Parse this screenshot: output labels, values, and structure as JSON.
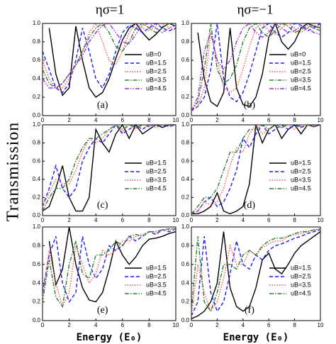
{
  "column_titles": [
    "ησ=1",
    "ησ=−1"
  ],
  "y_label": "Transmission",
  "chart_data": [
    {
      "type": "line",
      "annotation": "(a)",
      "legend": "lower right",
      "xlim": [
        0,
        10
      ],
      "ylim": [
        0,
        1
      ],
      "xticks": [
        0,
        2,
        4,
        6,
        8,
        10
      ],
      "yticks": [
        {
          "value": 0,
          "label": "0.0"
        },
        0.2,
        0.4,
        0.6,
        0.8,
        {
          "value": 1,
          "label": "1.0"
        }
      ],
      "x": [
        0,
        0.5,
        1,
        1.5,
        2,
        2.5,
        3,
        3.5,
        4,
        4.5,
        5,
        5.5,
        6,
        6.5,
        7,
        7.5,
        8,
        8.5,
        9,
        9.5,
        10
      ],
      "series": [
        {
          "name": "uB=0",
          "color": "#000000",
          "style": "solid",
          "values": [
            null,
            0.95,
            0.45,
            0.22,
            0.3,
            0.97,
            0.6,
            0.3,
            0.2,
            0.25,
            0.4,
            0.62,
            0.82,
            0.95,
            1.0,
            0.9,
            0.82,
            0.88,
            0.96,
            1.0,
            0.97
          ]
        },
        {
          "name": "uB=1.5",
          "color": "#1a1aff",
          "style": "dashed",
          "values": [
            0.7,
            0.5,
            0.3,
            0.25,
            0.35,
            0.6,
            0.95,
            0.7,
            0.4,
            0.3,
            0.45,
            0.7,
            0.9,
            0.98,
            0.95,
            0.9,
            0.95,
            1.0,
            0.95,
            0.92,
            0.95
          ]
        },
        {
          "name": "uB=2.5",
          "color": "#ff4d4d",
          "style": "dotted",
          "values": [
            0.6,
            0.4,
            0.3,
            0.3,
            0.4,
            0.55,
            0.7,
            0.9,
            1.0,
            0.8,
            0.6,
            0.55,
            0.7,
            0.9,
            1.0,
            0.95,
            0.92,
            0.98,
            1.0,
            0.95,
            0.93
          ]
        },
        {
          "name": "uB=3.5",
          "color": "#2e7d32",
          "style": "dashdot",
          "values": [
            0.5,
            0.35,
            0.3,
            0.35,
            0.45,
            0.55,
            0.7,
            0.85,
            0.95,
            1.0,
            0.9,
            0.75,
            0.7,
            0.8,
            0.95,
            1.0,
            0.95,
            0.9,
            0.95,
            1.0,
            0.97
          ]
        },
        {
          "name": "uB=4.5",
          "color": "#9b30d0",
          "style": "dashdotdot",
          "values": [
            0.4,
            0.3,
            0.3,
            0.35,
            0.45,
            0.55,
            0.65,
            0.8,
            0.9,
            0.98,
            1.0,
            0.9,
            0.8,
            0.78,
            0.88,
            0.98,
            1.0,
            0.95,
            0.9,
            0.95,
            0.98
          ]
        }
      ]
    },
    {
      "type": "line",
      "annotation": "(b)",
      "legend": "lower right",
      "xlim": [
        0,
        10
      ],
      "ylim": [
        0,
        1
      ],
      "xticks": [
        0,
        2,
        4,
        6,
        8,
        10
      ],
      "yticks": [
        {
          "value": 0,
          "label": "0.0"
        },
        0.2,
        0.4,
        0.6,
        0.8,
        {
          "value": 1,
          "label": "1.0"
        }
      ],
      "x": [
        0,
        0.5,
        1,
        1.5,
        2,
        2.5,
        3,
        3.5,
        4,
        4.5,
        5,
        5.5,
        6,
        6.5,
        7,
        7.5,
        8,
        8.5,
        9,
        9.5,
        10
      ],
      "series": [
        {
          "name": "uB=0",
          "color": "#000000",
          "style": "solid",
          "values": [
            null,
            0.9,
            0.4,
            0.15,
            0.1,
            0.25,
            0.95,
            0.3,
            0.12,
            0.1,
            0.2,
            0.45,
            0.85,
            1.0,
            0.8,
            0.72,
            0.8,
            0.95,
            1.0,
            0.97,
            0.95
          ]
        },
        {
          "name": "uB=1.5",
          "color": "#1a1aff",
          "style": "dashed",
          "values": [
            0.05,
            0.1,
            0.2,
            0.5,
            1.0,
            0.4,
            0.2,
            0.15,
            0.25,
            0.45,
            0.7,
            0.95,
            1.0,
            0.9,
            0.85,
            0.9,
            1.0,
            0.98,
            0.92,
            0.95,
            1.0
          ]
        },
        {
          "name": "uB=2.5",
          "color": "#ff4d4d",
          "style": "dotted",
          "values": [
            0.05,
            0.1,
            0.3,
            0.9,
            0.6,
            0.3,
            0.25,
            0.3,
            0.5,
            0.75,
            0.95,
            1.0,
            0.92,
            0.88,
            0.95,
            1.0,
            0.95,
            0.9,
            0.95,
            0.98,
            0.95
          ]
        },
        {
          "name": "uB=3.5",
          "color": "#2e7d32",
          "style": "dashdot",
          "values": [
            0.05,
            0.15,
            0.5,
            1.0,
            0.5,
            0.35,
            0.4,
            0.55,
            0.8,
            0.95,
            1.0,
            0.9,
            0.85,
            0.92,
            1.0,
            0.97,
            0.9,
            0.93,
            0.98,
            0.95,
            0.92
          ]
        },
        {
          "name": "uB=4.5",
          "color": "#9b30d0",
          "style": "dashdotdot",
          "values": [
            0.05,
            0.2,
            0.7,
            0.9,
            0.6,
            0.5,
            0.6,
            0.8,
            0.95,
            1.0,
            0.9,
            0.85,
            0.9,
            1.0,
            0.95,
            0.9,
            0.92,
            0.97,
            0.95,
            0.9,
            0.88
          ]
        }
      ]
    },
    {
      "type": "line",
      "annotation": "(c)",
      "legend": "lower right",
      "xlim": [
        0,
        10
      ],
      "ylim": [
        0,
        1
      ],
      "xticks": [
        0,
        2,
        4,
        6,
        8,
        10
      ],
      "yticks": [
        {
          "value": 0,
          "label": "0.0"
        },
        0.2,
        0.4,
        0.6,
        0.8,
        {
          "value": 1,
          "label": "1.0"
        }
      ],
      "x": [
        0,
        0.5,
        1,
        1.5,
        2,
        2.5,
        3,
        3.5,
        4,
        4.5,
        5,
        5.5,
        6,
        6.5,
        7,
        7.5,
        8,
        8.5,
        9,
        9.5,
        10
      ],
      "series": [
        {
          "name": "uB=1.5",
          "color": "#000000",
          "style": "solid",
          "values": [
            0.05,
            0.1,
            0.3,
            0.55,
            0.2,
            0.05,
            0.05,
            0.2,
            0.95,
            0.8,
            0.7,
            0.9,
            1.0,
            0.85,
            1.0,
            0.9,
            0.95,
            1.0,
            0.97,
            1.0,
            1.0
          ]
        },
        {
          "name": "uB=2.5",
          "color": "#1a1aff",
          "style": "dashed",
          "values": [
            0.1,
            0.3,
            0.55,
            0.3,
            0.2,
            0.3,
            0.6,
            0.75,
            0.85,
            0.8,
            0.9,
            1.0,
            0.9,
            0.95,
            1.0,
            0.95,
            1.0,
            1.0,
            0.98,
            1.0,
            1.0
          ]
        },
        {
          "name": "uB=3.5",
          "color": "#ff4d4d",
          "style": "dotted",
          "values": [
            0.1,
            0.25,
            0.4,
            0.35,
            0.35,
            0.5,
            0.7,
            0.85,
            0.8,
            0.85,
            0.95,
            1.0,
            0.92,
            1.0,
            0.95,
            1.0,
            1.0,
            0.97,
            1.0,
            1.0,
            1.0
          ]
        },
        {
          "name": "uB=4.5",
          "color": "#2e7d32",
          "style": "dashdot",
          "values": [
            0.05,
            0.2,
            0.3,
            0.3,
            0.4,
            0.6,
            0.75,
            0.85,
            0.85,
            0.9,
            0.95,
            1.0,
            0.95,
            1.0,
            0.97,
            1.0,
            0.98,
            1.0,
            1.0,
            0.98,
            1.0
          ]
        }
      ]
    },
    {
      "type": "line",
      "annotation": "(d)",
      "legend": "lower right",
      "xlim": [
        0,
        10
      ],
      "ylim": [
        0,
        1
      ],
      "xticks": [
        0,
        2,
        4,
        6,
        8,
        10
      ],
      "yticks": [
        {
          "value": 0,
          "label": "0.0"
        },
        0.2,
        0.4,
        0.6,
        0.8,
        {
          "value": 1,
          "label": "1.0"
        }
      ],
      "x": [
        0,
        0.5,
        1,
        1.5,
        2,
        2.5,
        3,
        3.5,
        4,
        4.5,
        5,
        5.5,
        6,
        6.5,
        7,
        7.5,
        8,
        8.5,
        9,
        9.5,
        10
      ],
      "series": [
        {
          "name": "uB=1.5",
          "color": "#000000",
          "style": "solid",
          "values": [
            0.02,
            0.02,
            0.05,
            0.1,
            0.25,
            0.05,
            0.02,
            0.05,
            0.1,
            0.35,
            1.0,
            0.8,
            0.95,
            1.0,
            0.85,
            0.95,
            1.0,
            0.9,
            1.0,
            0.98,
            1.0
          ]
        },
        {
          "name": "uB=2.5",
          "color": "#1a1aff",
          "style": "dashed",
          "values": [
            0.02,
            0.05,
            0.15,
            0.2,
            0.1,
            0.15,
            0.3,
            0.5,
            0.85,
            0.75,
            0.9,
            1.0,
            0.9,
            0.95,
            1.0,
            0.95,
            1.0,
            0.97,
            1.0,
            1.0,
            1.0
          ]
        },
        {
          "name": "uB=3.5",
          "color": "#ff4d4d",
          "style": "dotted",
          "values": [
            0.02,
            0.05,
            0.15,
            0.12,
            0.15,
            0.3,
            0.55,
            0.75,
            0.7,
            0.9,
            1.0,
            0.9,
            0.95,
            1.0,
            0.97,
            1.0,
            0.95,
            1.0,
            1.0,
            0.98,
            1.0
          ]
        },
        {
          "name": "uB=4.5",
          "color": "#2e7d32",
          "style": "dashdot",
          "values": [
            0.02,
            0.1,
            0.2,
            0.2,
            0.3,
            0.5,
            0.7,
            0.7,
            0.85,
            0.95,
            0.95,
            1.0,
            0.95,
            1.0,
            0.97,
            1.0,
            1.0,
            0.98,
            1.0,
            1.0,
            1.0
          ]
        }
      ]
    },
    {
      "type": "line",
      "annotation": "(e)",
      "legend": "lower right",
      "xlabel": "Energy (E₀)",
      "xlim": [
        0,
        10
      ],
      "ylim": [
        0,
        1
      ],
      "xticks": [
        0,
        2,
        4,
        6,
        8,
        10
      ],
      "yticks": [
        {
          "value": 0,
          "label": "0.0"
        },
        0.2,
        0.4,
        0.6,
        0.8,
        {
          "value": 1,
          "label": "1.0"
        }
      ],
      "x": [
        0,
        0.5,
        1,
        1.5,
        2,
        2.5,
        3,
        3.5,
        4,
        4.5,
        5,
        5.5,
        6,
        6.5,
        7,
        7.5,
        8,
        8.5,
        9,
        9.5,
        10
      ],
      "series": [
        {
          "name": "uB=1.5",
          "color": "#000000",
          "style": "solid",
          "values": [
            null,
            0.85,
            0.38,
            0.55,
            1.0,
            0.6,
            0.35,
            0.22,
            0.2,
            0.3,
            0.55,
            0.85,
            0.7,
            0.6,
            0.68,
            0.8,
            0.87,
            0.88,
            0.9,
            0.93,
            0.95
          ]
        },
        {
          "name": "uB=2.5",
          "color": "#1a1aff",
          "style": "dashed",
          "values": [
            0.3,
            0.7,
            0.9,
            0.4,
            0.2,
            0.3,
            0.9,
            0.6,
            0.45,
            0.55,
            0.8,
            0.75,
            0.8,
            0.9,
            0.85,
            0.9,
            0.95,
            0.92,
            0.97,
            0.95,
            0.98
          ]
        },
        {
          "name": "uB=3.5",
          "color": "#ff4d4d",
          "style": "dotted",
          "values": [
            0.25,
            0.75,
            0.4,
            0.15,
            0.3,
            0.8,
            0.6,
            0.4,
            0.5,
            0.75,
            0.7,
            0.75,
            0.85,
            0.85,
            0.9,
            0.92,
            0.95,
            0.93,
            0.97,
            0.97,
            0.98
          ]
        },
        {
          "name": "uB=4.5",
          "color": "#2e7d32",
          "style": "dashdot",
          "values": [
            0.2,
            0.65,
            0.25,
            0.15,
            0.6,
            0.85,
            0.5,
            0.45,
            0.7,
            0.7,
            0.75,
            0.85,
            0.8,
            0.9,
            0.92,
            0.9,
            0.95,
            0.95,
            0.97,
            0.98,
            0.98
          ]
        }
      ]
    },
    {
      "type": "line",
      "annotation": "(f)",
      "legend": "lower right",
      "xlabel": "Energy (E₀)",
      "xlim": [
        0,
        10
      ],
      "ylim": [
        0,
        1
      ],
      "xticks": [
        0,
        2,
        4,
        6,
        8,
        10
      ],
      "yticks": [
        {
          "value": 0,
          "label": "0.0"
        },
        0.2,
        0.4,
        0.6,
        0.8,
        {
          "value": 1,
          "label": "1.0"
        }
      ],
      "x": [
        0,
        0.5,
        1,
        1.5,
        2,
        2.5,
        3,
        3.5,
        4,
        4.5,
        5,
        5.5,
        6,
        6.5,
        7,
        7.5,
        8,
        8.5,
        9,
        9.5,
        10
      ],
      "series": [
        {
          "name": "uB=1.5",
          "color": "#000000",
          "style": "solid",
          "values": [
            0.02,
            0.05,
            0.1,
            0.2,
            0.4,
            0.95,
            0.35,
            0.15,
            0.1,
            0.15,
            0.35,
            0.65,
            0.72,
            0.55,
            0.5,
            0.6,
            0.72,
            0.8,
            0.85,
            0.9,
            0.95
          ]
        },
        {
          "name": "uB=2.5",
          "color": "#1a1aff",
          "style": "dashed",
          "values": [
            0.05,
            0.2,
            0.9,
            0.3,
            0.1,
            0.2,
            0.5,
            0.85,
            0.6,
            0.55,
            0.7,
            0.65,
            0.75,
            0.8,
            0.82,
            0.85,
            0.88,
            0.9,
            0.93,
            0.95,
            0.97
          ]
        },
        {
          "name": "uB=3.5",
          "color": "#ff4d4d",
          "style": "dotted",
          "values": [
            0.05,
            0.6,
            0.3,
            0.1,
            0.2,
            0.45,
            0.8,
            0.6,
            0.6,
            0.75,
            0.7,
            0.78,
            0.82,
            0.85,
            0.85,
            0.9,
            0.92,
            0.93,
            0.95,
            0.97,
            0.97
          ]
        },
        {
          "name": "uB=4.5",
          "color": "#2e7d32",
          "style": "dashdot",
          "values": [
            0.1,
            0.9,
            0.2,
            0.1,
            0.3,
            0.6,
            0.6,
            0.55,
            0.7,
            0.75,
            0.7,
            0.8,
            0.85,
            0.88,
            0.88,
            0.9,
            0.93,
            0.95,
            0.95,
            0.97,
            0.98
          ]
        }
      ]
    }
  ]
}
